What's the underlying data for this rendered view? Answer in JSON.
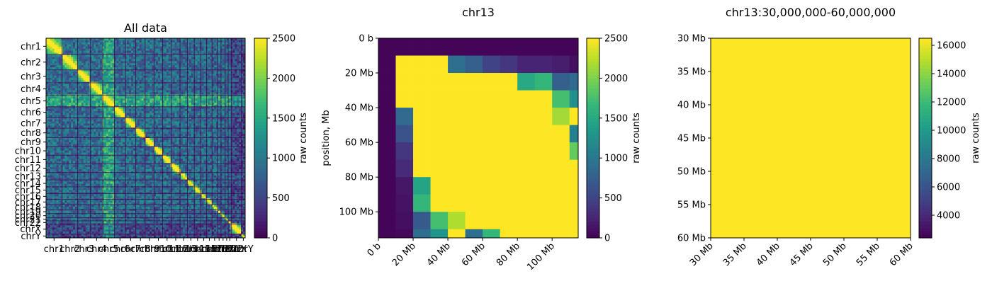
{
  "chart_data": [
    {
      "type": "heatmap",
      "title": "All data",
      "xlabel": "",
      "ylabel": "",
      "colorbar": {
        "label": "raw counts",
        "min": 0,
        "max": 2500,
        "ticks": [
          "0",
          "500",
          "1000",
          "1500",
          "2000",
          "2500"
        ]
      },
      "chromosomes": [
        "chr1",
        "chr2",
        "chr3",
        "chr4",
        "chr5",
        "chr6",
        "chr7",
        "chr8",
        "chr9",
        "chr10",
        "chr11",
        "chr12",
        "chr13",
        "chr14",
        "chr15",
        "chr16",
        "chr17",
        "chr18",
        "chr19",
        "chr20",
        "chr21",
        "chr22",
        "chrX",
        "chrY"
      ],
      "colormap": "viridis"
    },
    {
      "type": "heatmap",
      "title": "chr13",
      "xlabel": "",
      "ylabel": "position, Mb",
      "bin_size_mb": 10,
      "xticks": [
        "0 b",
        "20 Mb",
        "40 Mb",
        "60 Mb",
        "80 Mb",
        "100 Mb"
      ],
      "yticks": [
        "0 b",
        "20 Mb",
        "40 Mb",
        "60 Mb",
        "80 Mb",
        "100 Mb"
      ],
      "colorbar": {
        "label": "raw counts",
        "min": 0,
        "max": 2500,
        "ticks": [
          "0",
          "500",
          "1000",
          "1500",
          "2000",
          "2500"
        ]
      },
      "matrix": [
        [
          30,
          30,
          30,
          30,
          30,
          30,
          30,
          30,
          30,
          30,
          30,
          30
        ],
        [
          30,
          2500,
          2500,
          2500,
          900,
          750,
          500,
          400,
          250,
          250,
          200,
          100
        ],
        [
          30,
          2500,
          2500,
          2500,
          2500,
          2500,
          2500,
          2500,
          1500,
          1650,
          750,
          850
        ],
        [
          30,
          2500,
          2500,
          2500,
          2500,
          2500,
          2500,
          2500,
          2500,
          2500,
          1750,
          1250
        ],
        [
          30,
          850,
          2500,
          2500,
          2500,
          2500,
          2500,
          2500,
          2500,
          2500,
          2150,
          2500
        ],
        [
          30,
          650,
          2500,
          2500,
          2500,
          2500,
          2500,
          2500,
          2500,
          2500,
          2500,
          1100
        ],
        [
          30,
          400,
          2500,
          2500,
          2500,
          2500,
          2500,
          2500,
          2500,
          2500,
          2500,
          1900
        ],
        [
          30,
          300,
          2500,
          2500,
          2500,
          2500,
          2500,
          2500,
          2500,
          2500,
          2500,
          2500
        ],
        [
          30,
          150,
          1450,
          2500,
          2500,
          2500,
          2500,
          2500,
          2500,
          2500,
          2500,
          2500
        ],
        [
          30,
          120,
          1650,
          2500,
          2500,
          2500,
          2500,
          2500,
          2500,
          2500,
          2500,
          2500
        ],
        [
          30,
          100,
          700,
          1750,
          2200,
          2500,
          2500,
          2500,
          2500,
          2500,
          2500,
          2500
        ],
        [
          30,
          60,
          900,
          1300,
          2500,
          900,
          1650,
          2500,
          2500,
          2500,
          2500,
          2500
        ]
      ],
      "colormap": "viridis"
    },
    {
      "type": "heatmap",
      "title": "chr13:30,000,000-60,000,000",
      "xlabel": "",
      "ylabel": "",
      "xticks": [
        "30 Mb",
        "35 Mb",
        "40 Mb",
        "45 Mb",
        "50 Mb",
        "55 Mb",
        "60 Mb"
      ],
      "yticks": [
        "30 Mb",
        "35 Mb",
        "40 Mb",
        "45 Mb",
        "50 Mb",
        "55 Mb",
        "60 Mb"
      ],
      "colorbar": {
        "label": "raw counts",
        "min": 2400,
        "max": 16500,
        "ticks": [
          "4000",
          "6000",
          "8000",
          "10000",
          "12000",
          "14000",
          "16000"
        ]
      },
      "matrix": [
        [
          16500
        ]
      ],
      "colormap": "viridis"
    }
  ]
}
